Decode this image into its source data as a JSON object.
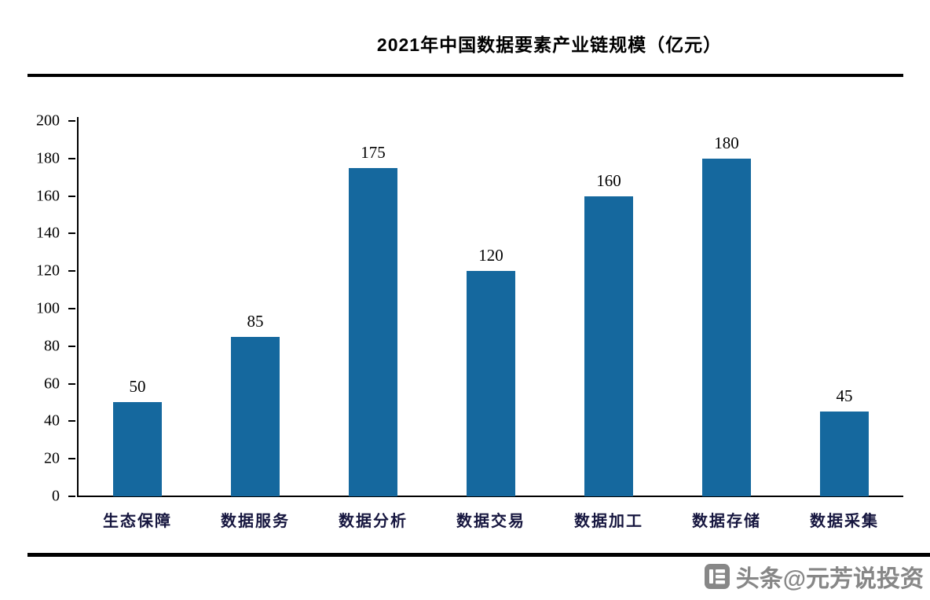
{
  "chart_data": {
    "type": "bar",
    "title": "2021年中国数据要素产业链规模（亿元）",
    "categories": [
      "生态保障",
      "数据服务",
      "数据分析",
      "数据交易",
      "数据加工",
      "数据存储",
      "数据采集"
    ],
    "values": [
      50,
      85,
      175,
      120,
      160,
      180,
      45
    ],
    "xlabel": "",
    "ylabel": "",
    "ylim": [
      0,
      200
    ],
    "yticks": [
      0,
      20,
      40,
      60,
      80,
      100,
      120,
      140,
      160,
      180,
      200
    ],
    "bar_color": "#15689e",
    "grid": false,
    "legend": "none",
    "value_labels_shown": true
  },
  "watermark": {
    "text": "头条@元芳说投资",
    "logo": "toutiao-logo-icon",
    "color": "#878787"
  }
}
